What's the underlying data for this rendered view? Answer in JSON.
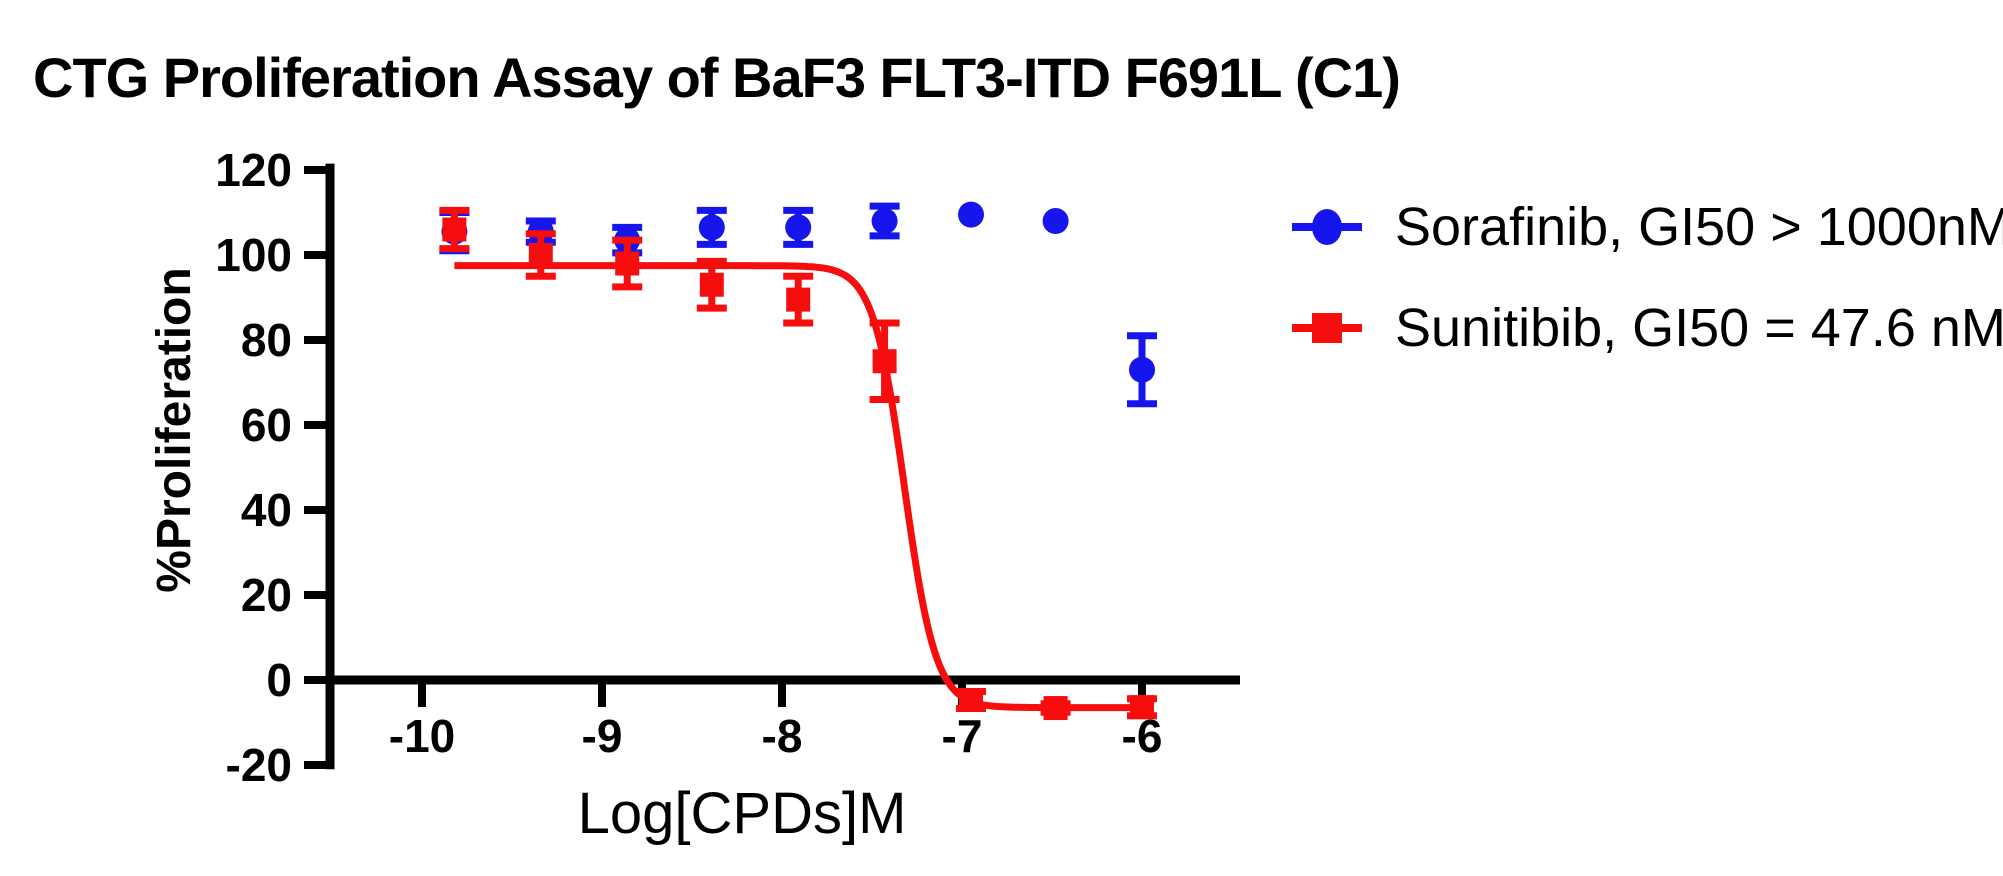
{
  "figure": {
    "background": "#ffffff",
    "axis_color": "#000000"
  },
  "chart_data": {
    "type": "scatter",
    "title": "CTG Proliferation Assay of BaF3 FLT3-ITD F691L (C1)",
    "xlabel": "Log[CPDs]M",
    "ylabel": "%Proliferation",
    "xlim": [
      -10.51,
      -5.45
    ],
    "ylim": [
      -20,
      120
    ],
    "x_ticks": [
      -10,
      -9,
      -8,
      -7,
      -6
    ],
    "x_tick_labels": [
      "-10",
      "-9",
      "-8",
      "-7",
      "-6"
    ],
    "y_ticks": [
      120,
      100,
      80,
      60,
      40,
      20,
      0,
      -20
    ],
    "y_tick_labels": [
      "120",
      "100",
      "80",
      "60",
      "40",
      "20",
      "0",
      "-20"
    ],
    "grid": false,
    "legend_position": "right-outside",
    "x": [
      -9.82,
      -9.34,
      -8.86,
      -8.39,
      -7.91,
      -7.43,
      -6.95,
      -6.48,
      -6.0
    ],
    "series": [
      {
        "name": "Sorafinib",
        "legend_label": "Sorafinib, GI50 > 1000nM",
        "gi50": "> 1000nM",
        "color": "#1515ec",
        "marker": "circle",
        "values": [
          105.5,
          105.5,
          103.5,
          106.5,
          106.5,
          108,
          109.5,
          108,
          73
        ],
        "errors": [
          4.5,
          2.5,
          3,
          4,
          4,
          3.5,
          0,
          0,
          8
        ],
        "fit_curve": null
      },
      {
        "name": "Sunitibib",
        "legend_label": "Sunitibib, GI50 = 47.6 nM",
        "gi50": "= 47.6 nM",
        "color": "#f60e0e",
        "marker": "square",
        "values": [
          106,
          100,
          98,
          93,
          89.5,
          75,
          -4.7,
          -6.6,
          -6.4
        ],
        "errors": [
          4.5,
          5,
          5.5,
          5.5,
          5.5,
          9,
          2,
          1,
          2
        ],
        "fit_curve": {
          "model": "sigmoid-4pl",
          "top": 97.5,
          "bottom": -6.5,
          "log_gi50": -7.32,
          "hill_slope": 5
        }
      }
    ]
  }
}
